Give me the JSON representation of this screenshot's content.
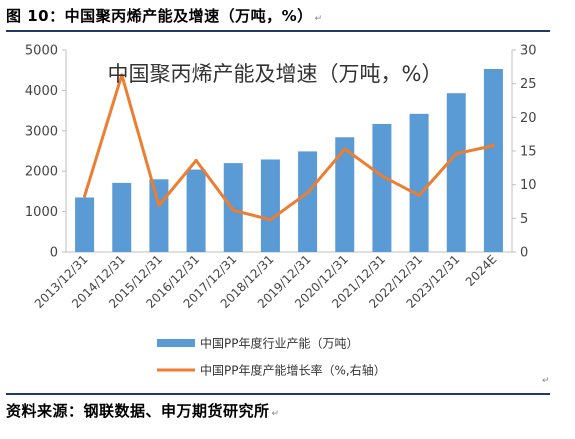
{
  "header": {
    "figure_title": "图 10：中国聚丙烯产能及增速（万吨，%）",
    "paragraph_mark": "↵"
  },
  "footer": {
    "source": "资料来源：钢联数据、申万期货研究所",
    "paragraph_mark": "↵",
    "end_mark": "↵"
  },
  "colors": {
    "bar": "#5b9bd5",
    "line": "#ed7d31",
    "rule": "#1f3a68",
    "axis": "#bfbfbf"
  },
  "chart_data": {
    "type": "bar",
    "title": "中国聚丙烯产能及增速（万吨，%）",
    "categories": [
      "2013/12/31",
      "2014/12/31",
      "2015/12/31",
      "2016/12/31",
      "2017/12/31",
      "2018/12/31",
      "2019/12/31",
      "2020/12/31",
      "2021/12/31",
      "2022/12/31",
      "2023/12/31",
      "2024E"
    ],
    "series": [
      {
        "name": "中国PP年度行业产能（万吨）",
        "kind": "bar",
        "axis": "left",
        "values": [
          1350,
          1710,
          1800,
          2040,
          2200,
          2290,
          2490,
          2840,
          3170,
          3420,
          3930,
          4530
        ]
      },
      {
        "name": "中国PP年度产能增长率（%,右轴）",
        "kind": "line",
        "axis": "right",
        "values": [
          8.3,
          26.3,
          6.9,
          13.6,
          6.2,
          4.8,
          8.8,
          15.3,
          11.3,
          8.4,
          14.6,
          15.8
        ]
      }
    ],
    "y_left": {
      "min": 0,
      "max": 5000,
      "ticks": [
        0,
        1000,
        2000,
        3000,
        4000,
        5000
      ]
    },
    "y_right": {
      "min": 0,
      "max": 30,
      "ticks": [
        0,
        5,
        10,
        15,
        20,
        25,
        30
      ]
    },
    "grid": false,
    "legend_position": "bottom"
  }
}
